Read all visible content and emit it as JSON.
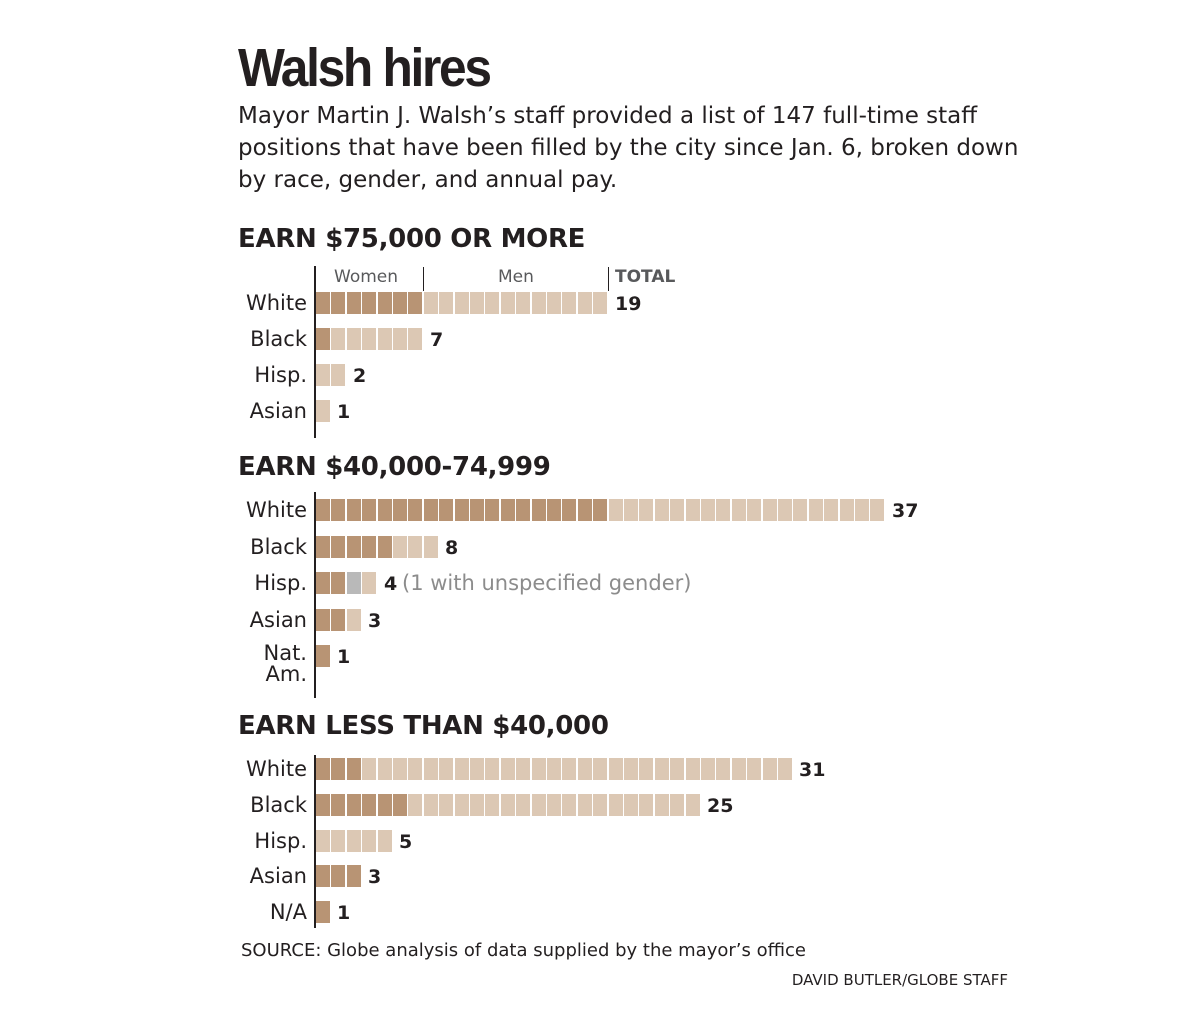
{
  "title": "Walsh hires",
  "intro": "Mayor Martin J. Walsh’s staff provided a list of 147 full-time staff positions that have been filled by the city since Jan. 6, broken down by race, gender, and annual pay.",
  "column_headers": {
    "women": "Women",
    "men": "Men",
    "total": "TOTAL"
  },
  "source": "SOURCE: Globe analysis of data supplied by the mayor’s office",
  "credit": "DAVID BUTLER/GLOBE STAFF",
  "colors": {
    "women": "#b89474",
    "men": "#dcc8b4",
    "unspecified": "#b9b9b9",
    "text": "#231f20"
  },
  "chart_data": {
    "type": "bar",
    "orientation": "horizontal",
    "stacked": true,
    "series": [
      "Women",
      "Men",
      "Unspecified gender"
    ],
    "sections": [
      {
        "title": "EARN $75,000 OR MORE",
        "rows": [
          {
            "label": "White",
            "women": 7,
            "men": 12,
            "unspecified": 0,
            "total": 19
          },
          {
            "label": "Black",
            "women": 1,
            "men": 6,
            "unspecified": 0,
            "total": 7
          },
          {
            "label": "Hisp.",
            "women": 0,
            "men": 2,
            "unspecified": 0,
            "total": 2
          },
          {
            "label": "Asian",
            "women": 0,
            "men": 1,
            "unspecified": 0,
            "total": 1
          }
        ]
      },
      {
        "title": "EARN $40,000-74,999",
        "rows": [
          {
            "label": "White",
            "women": 19,
            "men": 18,
            "unspecified": 0,
            "total": 37
          },
          {
            "label": "Black",
            "women": 5,
            "men": 3,
            "unspecified": 0,
            "total": 8
          },
          {
            "label": "Hisp.",
            "women": 2,
            "men": 1,
            "unspecified": 1,
            "total": 4,
            "note": "(1 with unspecified gender)"
          },
          {
            "label": "Asian",
            "women": 2,
            "men": 1,
            "unspecified": 0,
            "total": 3
          },
          {
            "label": "Nat.\nAm.",
            "women": 1,
            "men": 0,
            "unspecified": 0,
            "total": 1
          }
        ]
      },
      {
        "title": "EARN LESS THAN $40,000",
        "rows": [
          {
            "label": "White",
            "women": 3,
            "men": 28,
            "unspecified": 0,
            "total": 31
          },
          {
            "label": "Black",
            "women": 6,
            "men": 19,
            "unspecified": 0,
            "total": 25
          },
          {
            "label": "Hisp.",
            "women": 0,
            "men": 5,
            "unspecified": 0,
            "total": 5
          },
          {
            "label": "Asian",
            "women": 3,
            "men": 0,
            "unspecified": 0,
            "total": 3
          },
          {
            "label": "N/A",
            "women": 1,
            "men": 0,
            "unspecified": 0,
            "total": 1
          }
        ]
      }
    ]
  }
}
